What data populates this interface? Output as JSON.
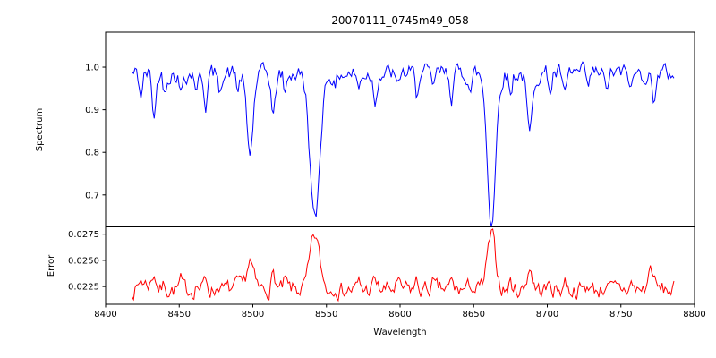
{
  "chart_data": {
    "type": "line",
    "title": "20070111_0745m49_058",
    "xlabel": "Wavelength",
    "grid": false,
    "legend": "none",
    "x_range": [
      8400,
      8800
    ],
    "x_data_range": [
      8418,
      8786
    ],
    "sample_step": 1.0,
    "x_ticks": {
      "values": [
        8400,
        8450,
        8500,
        8550,
        8600,
        8650,
        8700,
        8750,
        8800
      ],
      "labels": [
        "8400",
        "8450",
        "8500",
        "8550",
        "8600",
        "8650",
        "8700",
        "8750",
        "8800"
      ]
    },
    "panels": [
      {
        "name": "spectrum",
        "ylabel": "Spectrum",
        "y_range": [
          0.625,
          1.082
        ],
        "y_ticks": {
          "values": [
            0.7,
            0.8,
            0.9,
            1.0
          ],
          "labels": [
            "0.7",
            "0.8",
            "0.9",
            "1.0"
          ]
        },
        "color": "#0000ff",
        "continuum": 0.985,
        "noise": {
          "seed": 42,
          "amp": 0.018,
          "smooth": 0.5
        }
      },
      {
        "name": "error",
        "ylabel": "Error",
        "y_range": [
          0.0208,
          0.0282
        ],
        "y_ticks": {
          "values": [
            0.0225,
            0.025,
            0.0275
          ],
          "labels": [
            "0.0225",
            "0.0250",
            "0.0275"
          ]
        },
        "color": "#ff0000",
        "baseline": 0.0222,
        "noise": {
          "seed": 7,
          "amp": 0.0007,
          "smooth": 0.5
        },
        "line_coupling": 0.0145,
        "extra_bumps": [
          {
            "center": 8770,
            "amp": 0.0018,
            "sigma": 1.5
          },
          {
            "center": 8428,
            "amp": 0.0006,
            "sigma": 3.0
          }
        ]
      }
    ],
    "absorption_lines": [
      {
        "center": 8424.0,
        "depth": 0.05,
        "sigma": 1.2
      },
      {
        "center": 8433.0,
        "depth": 0.1,
        "sigma": 1.3
      },
      {
        "center": 8440.0,
        "depth": 0.04,
        "sigma": 1.0
      },
      {
        "center": 8451.0,
        "depth": 0.05,
        "sigma": 1.0
      },
      {
        "center": 8462.0,
        "depth": 0.04,
        "sigma": 1.0
      },
      {
        "center": 8468.0,
        "depth": 0.07,
        "sigma": 1.2
      },
      {
        "center": 8477.0,
        "depth": 0.04,
        "sigma": 1.0
      },
      {
        "center": 8490.0,
        "depth": 0.04,
        "sigma": 1.0
      },
      {
        "center": 8498.0,
        "depth": 0.19,
        "sigma": 2.2
      },
      {
        "center": 8514.0,
        "depth": 0.1,
        "sigma": 1.4
      },
      {
        "center": 8522.0,
        "depth": 0.05,
        "sigma": 1.0
      },
      {
        "center": 8542.1,
        "depth": 0.35,
        "sigma": 3.2
      },
      {
        "center": 8556.0,
        "depth": 0.04,
        "sigma": 1.0
      },
      {
        "center": 8572.0,
        "depth": 0.04,
        "sigma": 1.0
      },
      {
        "center": 8583.0,
        "depth": 0.06,
        "sigma": 1.2
      },
      {
        "center": 8598.0,
        "depth": 0.04,
        "sigma": 1.0
      },
      {
        "center": 8611.0,
        "depth": 0.05,
        "sigma": 1.0
      },
      {
        "center": 8622.0,
        "depth": 0.04,
        "sigma": 1.0
      },
      {
        "center": 8635.0,
        "depth": 0.05,
        "sigma": 1.0
      },
      {
        "center": 8648.0,
        "depth": 0.04,
        "sigma": 1.0
      },
      {
        "center": 8662.1,
        "depth": 0.35,
        "sigma": 2.8
      },
      {
        "center": 8675.0,
        "depth": 0.05,
        "sigma": 1.0
      },
      {
        "center": 8688.0,
        "depth": 0.145,
        "sigma": 1.8
      },
      {
        "center": 8702.0,
        "depth": 0.04,
        "sigma": 1.0
      },
      {
        "center": 8712.0,
        "depth": 0.06,
        "sigma": 1.2
      },
      {
        "center": 8728.0,
        "depth": 0.04,
        "sigma": 1.0
      },
      {
        "center": 8740.0,
        "depth": 0.05,
        "sigma": 1.0
      },
      {
        "center": 8757.0,
        "depth": 0.04,
        "sigma": 1.0
      },
      {
        "center": 8772.0,
        "depth": 0.06,
        "sigma": 1.2
      }
    ]
  }
}
